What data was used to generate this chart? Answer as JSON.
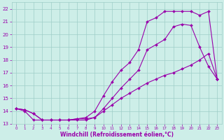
{
  "xlabel": "Windchill (Refroidissement éolien,°C)",
  "xlim": [
    -0.5,
    23.5
  ],
  "ylim": [
    13.0,
    22.5
  ],
  "yticks": [
    13,
    14,
    15,
    16,
    17,
    18,
    19,
    20,
    21,
    22
  ],
  "xticks": [
    0,
    1,
    2,
    3,
    4,
    5,
    6,
    7,
    8,
    9,
    10,
    11,
    12,
    13,
    14,
    15,
    16,
    17,
    18,
    19,
    20,
    21,
    22,
    23
  ],
  "bg_color": "#cdeee8",
  "grid_color": "#9ecdc7",
  "line_color": "#9900aa",
  "line1_x": [
    0,
    1,
    2,
    3,
    4,
    5,
    6,
    7,
    8,
    9,
    10,
    11,
    12,
    13,
    14,
    15,
    16,
    17,
    18,
    19,
    20,
    21,
    22,
    23
  ],
  "line1_y": [
    14.2,
    14.1,
    13.8,
    13.3,
    13.3,
    13.3,
    13.3,
    13.4,
    13.4,
    13.5,
    14.2,
    15.0,
    15.8,
    16.5,
    17.2,
    18.8,
    19.2,
    19.6,
    20.6,
    20.8,
    20.7,
    19.0,
    17.5,
    16.5
  ],
  "line2_x": [
    0,
    1,
    2,
    3,
    4,
    5,
    6,
    7,
    8,
    9,
    10,
    11,
    12,
    13,
    14,
    15,
    16,
    17,
    18,
    19,
    20,
    21,
    22,
    23
  ],
  "line2_y": [
    14.2,
    14.1,
    13.8,
    13.3,
    13.3,
    13.3,
    13.3,
    13.4,
    13.5,
    14.0,
    15.2,
    16.3,
    17.2,
    17.8,
    18.8,
    21.0,
    21.3,
    21.8,
    21.8,
    21.8,
    21.8,
    21.5,
    21.8,
    16.5
  ],
  "line3_x": [
    0,
    1,
    2,
    3,
    4,
    5,
    6,
    7,
    8,
    9,
    10,
    11,
    12,
    13,
    14,
    15,
    16,
    17,
    18,
    19,
    20,
    21,
    22,
    23
  ],
  "line3_y": [
    14.2,
    14.0,
    13.3,
    13.3,
    13.3,
    13.3,
    13.3,
    13.3,
    13.3,
    13.5,
    14.0,
    14.5,
    15.0,
    15.4,
    15.8,
    16.2,
    16.5,
    16.8,
    17.0,
    17.3,
    17.6,
    18.0,
    18.5,
    16.5
  ],
  "marker": "D",
  "markersize": 2.0,
  "linewidth": 0.8
}
